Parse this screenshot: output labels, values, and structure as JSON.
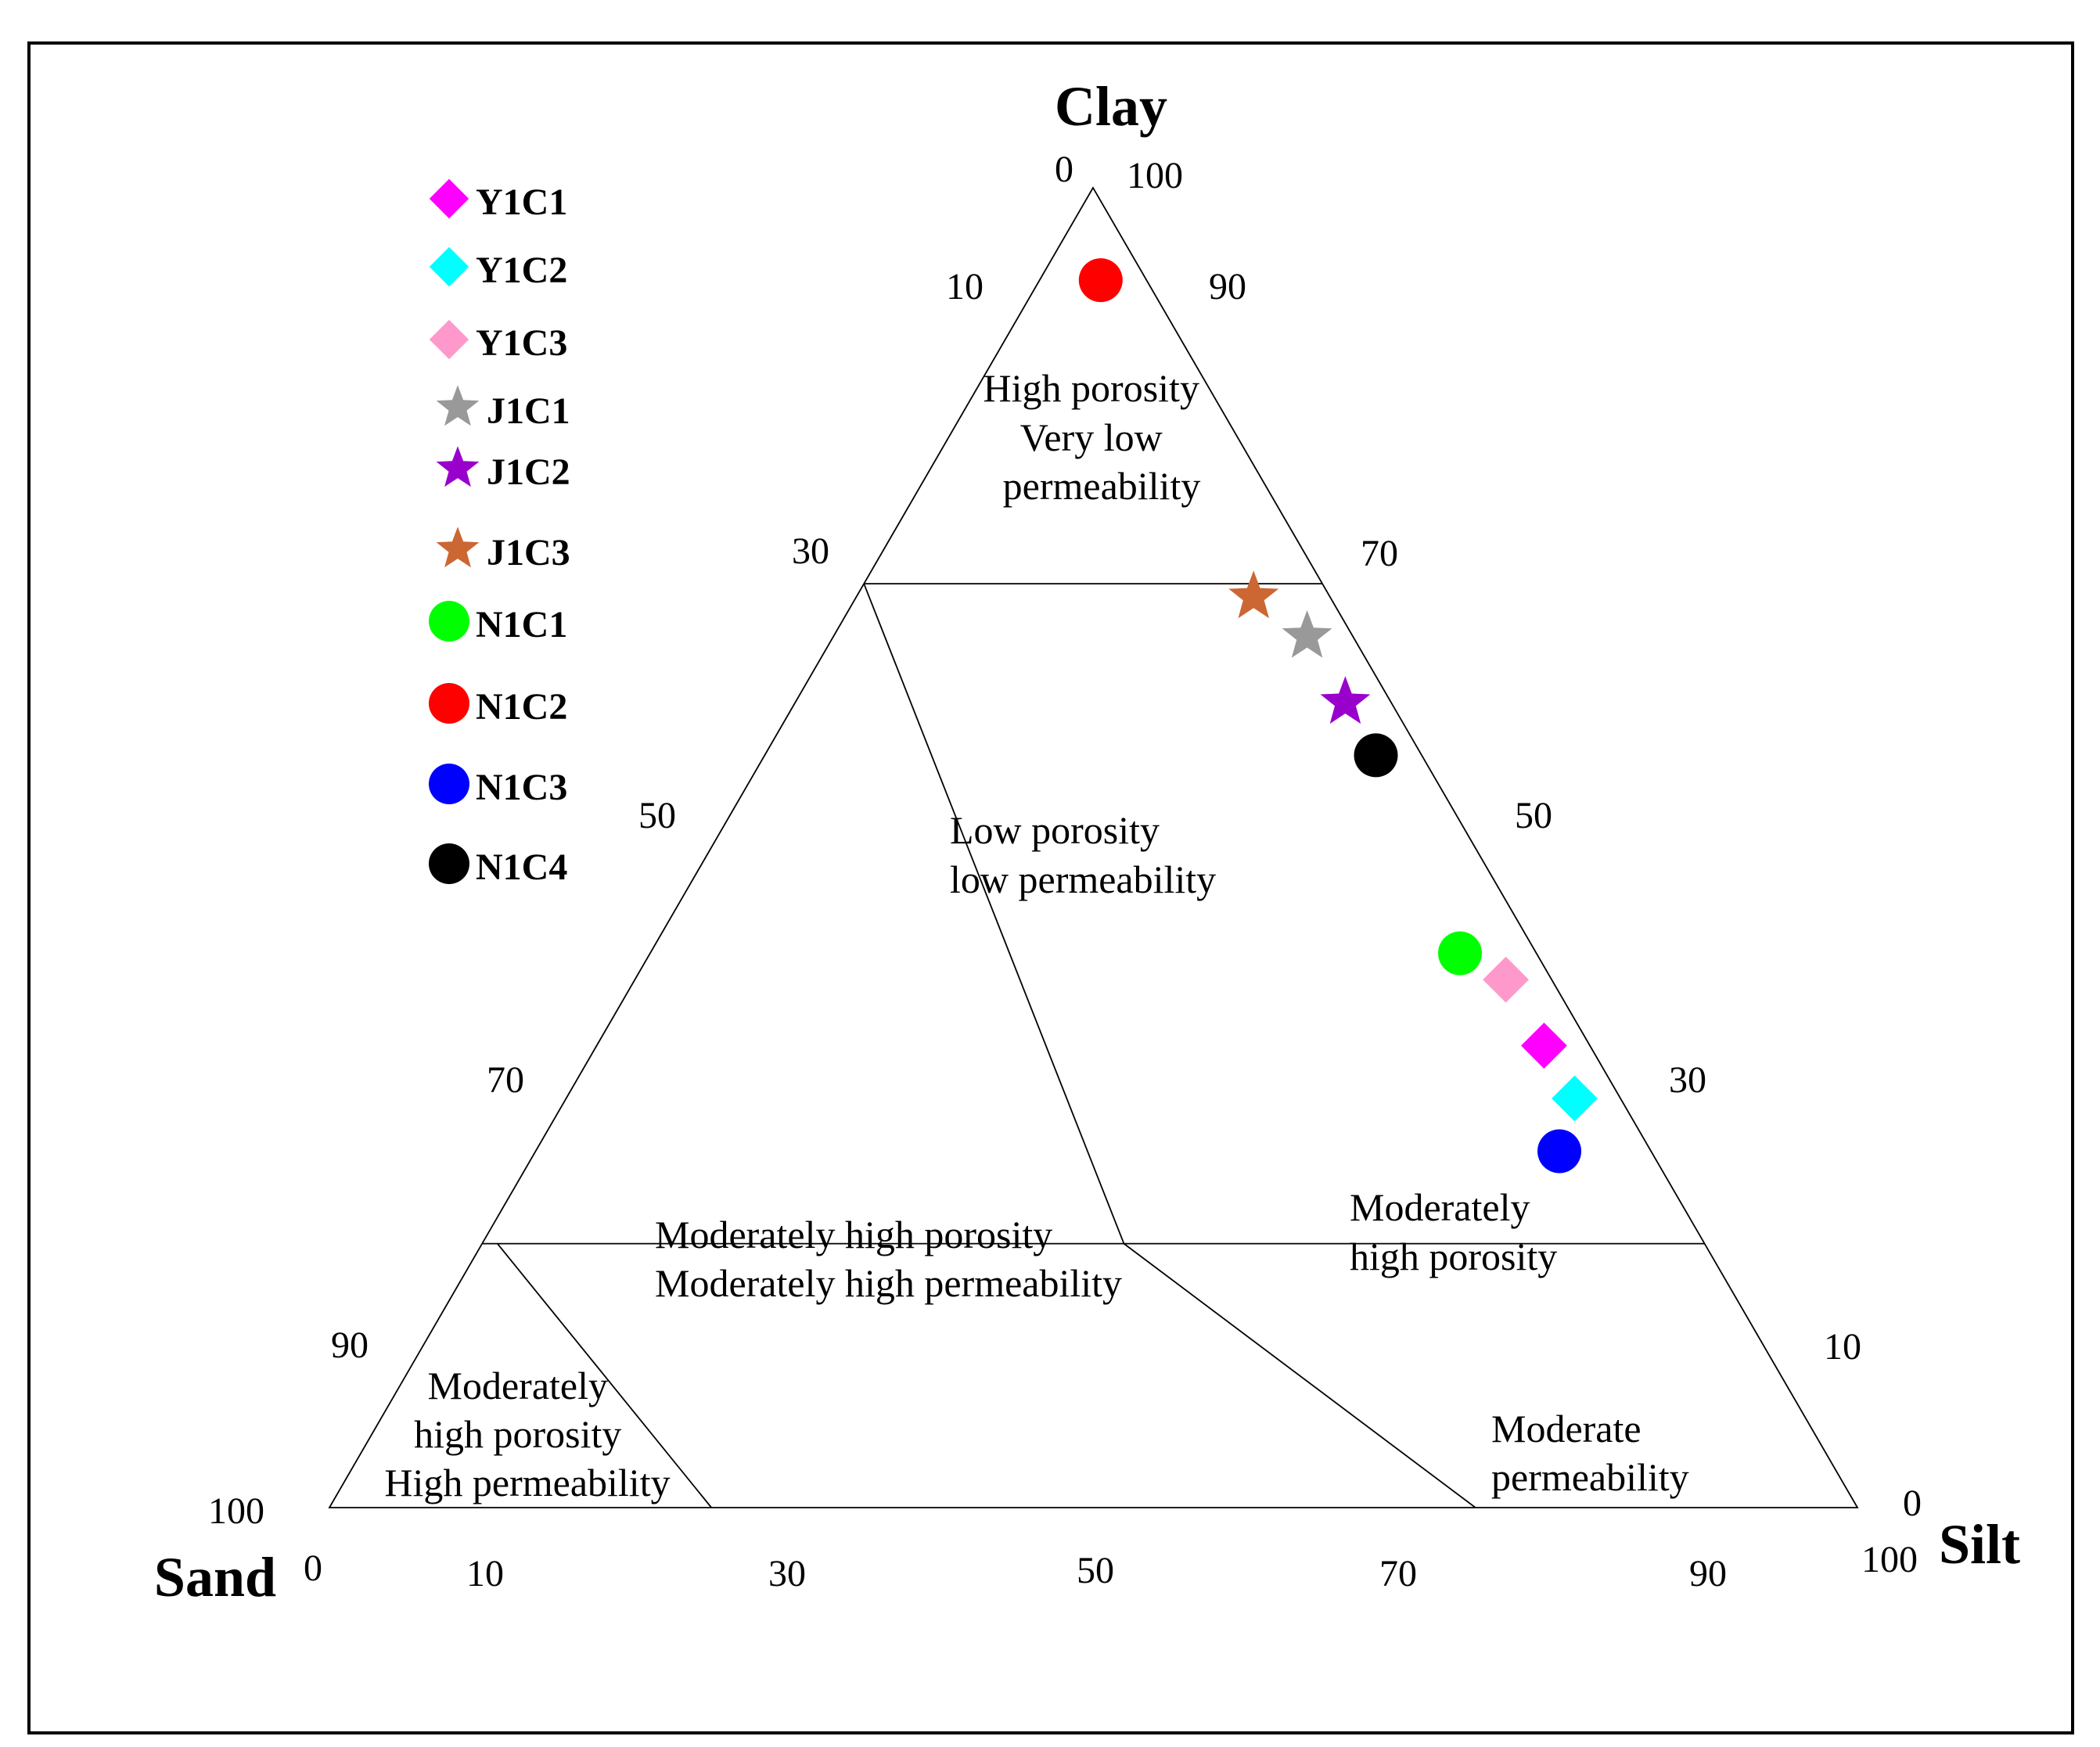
{
  "chart_data": {
    "type": "ternary-scatter",
    "axes": {
      "top": {
        "label": "Clay"
      },
      "left": {
        "label": "Sand"
      },
      "right": {
        "label": "Silt"
      }
    },
    "ticks": {
      "bottom": [
        "0",
        "10",
        "30",
        "50",
        "70",
        "90",
        "100"
      ],
      "left": [
        "100",
        "90",
        "70",
        "50",
        "30",
        "10",
        "0"
      ],
      "right": [
        "100",
        "90",
        "70",
        "50",
        "30",
        "10",
        "0"
      ]
    },
    "zones": [
      {
        "name": "high-porosity-very-low-permeability",
        "lines": [
          "High porosity",
          "Very low",
          "permeability"
        ]
      },
      {
        "name": "low-porosity-low-permeability",
        "lines": [
          "Low porosity",
          "low permeability"
        ]
      },
      {
        "name": "moderately-high-porosity-moderately-high-permeability",
        "lines": [
          "Moderately high porosity",
          "Moderately high permeability"
        ]
      },
      {
        "name": "moderately-high-porosity",
        "lines": [
          "Moderately",
          "high porosity"
        ]
      },
      {
        "name": "moderate-permeability",
        "lines": [
          "Moderate",
          "permeability"
        ]
      },
      {
        "name": "moderately-high-porosity-high-permeability",
        "lines": [
          "Moderately",
          "high porosity",
          "High permeability"
        ]
      }
    ],
    "boundaries": [
      {
        "a": {
          "clay": 70,
          "sand": 30,
          "silt": 0
        },
        "b": {
          "clay": 70,
          "sand": 0,
          "silt": 30
        }
      },
      {
        "a": {
          "clay": 20,
          "sand": 80,
          "silt": 0
        },
        "b": {
          "clay": 20,
          "sand": 0,
          "silt": 80
        }
      },
      {
        "a": {
          "clay": 70,
          "sand": 30,
          "silt": 0
        },
        "b": {
          "clay": 20,
          "sand": 38,
          "silt": 42
        }
      },
      {
        "a": {
          "clay": 20,
          "sand": 38,
          "silt": 42
        },
        "b": {
          "clay": 0,
          "sand": 25,
          "silt": 75
        }
      },
      {
        "a": {
          "clay": 20,
          "sand": 79,
          "silt": 1
        },
        "b": {
          "clay": 0,
          "sand": 75,
          "silt": 25
        }
      }
    ],
    "series": [
      {
        "name": "Y1C1",
        "marker": "diamond",
        "color": "#ff00ff",
        "clay": 35,
        "sand": 3,
        "silt": 62
      },
      {
        "name": "Y1C2",
        "marker": "diamond",
        "color": "#00ffff",
        "clay": 31,
        "sand": 3,
        "silt": 66
      },
      {
        "name": "Y1C3",
        "marker": "diamond",
        "color": "#ff99cc",
        "clay": 40,
        "sand": 3,
        "silt": 57
      },
      {
        "name": "J1C1",
        "marker": "star",
        "color": "#999999",
        "clay": 66,
        "sand": 3,
        "silt": 31
      },
      {
        "name": "J1C2",
        "marker": "star",
        "color": "#9900cc",
        "clay": 61,
        "sand": 3,
        "silt": 36
      },
      {
        "name": "J1C3",
        "marker": "star",
        "color": "#cc6633",
        "clay": 69,
        "sand": 5,
        "silt": 26
      },
      {
        "name": "N1C1",
        "marker": "circle",
        "color": "#00ff00",
        "clay": 42,
        "sand": 5,
        "silt": 53
      },
      {
        "name": "N1C2",
        "marker": "circle",
        "color": "#ff0000",
        "clay": 93,
        "sand": 3,
        "silt": 4
      },
      {
        "name": "N1C3",
        "marker": "circle",
        "color": "#0000ff",
        "clay": 27,
        "sand": 6,
        "silt": 67
      },
      {
        "name": "N1C4",
        "marker": "circle",
        "color": "#000000",
        "clay": 57,
        "sand": 3,
        "silt": 40
      }
    ]
  }
}
